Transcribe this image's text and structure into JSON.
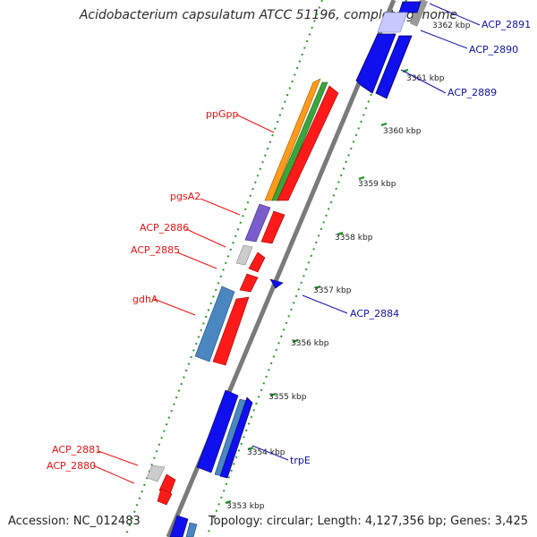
{
  "title": "Acidobacterium capsulatum ATCC 51196, complete genome",
  "footer": {
    "accession": "Accession: NC_012483",
    "summary": "Topology: circular; Length: 4,127,356 bp; Genes: 3,425"
  },
  "ticks": [
    "3362 kbp",
    "3361 kbp",
    "3360 kbp",
    "3359 kbp",
    "3358 kbp",
    "3357 kbp",
    "3356 kbp",
    "3355 kbp",
    "3354 kbp",
    "3353 kbp"
  ],
  "labels": {
    "ppgpp": "ppGpp",
    "pgsa2": "pgsA2",
    "acp2886": "ACP_2886",
    "acp2885": "ACP_2885",
    "gdha": "gdhA",
    "acp2881": "ACP_2881",
    "acp2880": "ACP_2880",
    "acp2891": "ACP_2891",
    "acp2890": "ACP_2890",
    "acp2889": "ACP_2889",
    "acp2884": "ACP_2884",
    "trpe": "trpE"
  },
  "colors": {
    "forward_cds": "#ff1a1a",
    "reverse_cds": "#1010ee",
    "rrna": "#3aa63a",
    "orange_feature": "#ff9a1a",
    "purple_feature": "#7b5ccc",
    "steel_feature": "#4a86c0",
    "grey_feature": "#c8c8c8",
    "forward_label": "#ee1111",
    "reverse_label": "#1111aa",
    "tick_green": "#2a9a2a",
    "backbone": "#888888"
  }
}
